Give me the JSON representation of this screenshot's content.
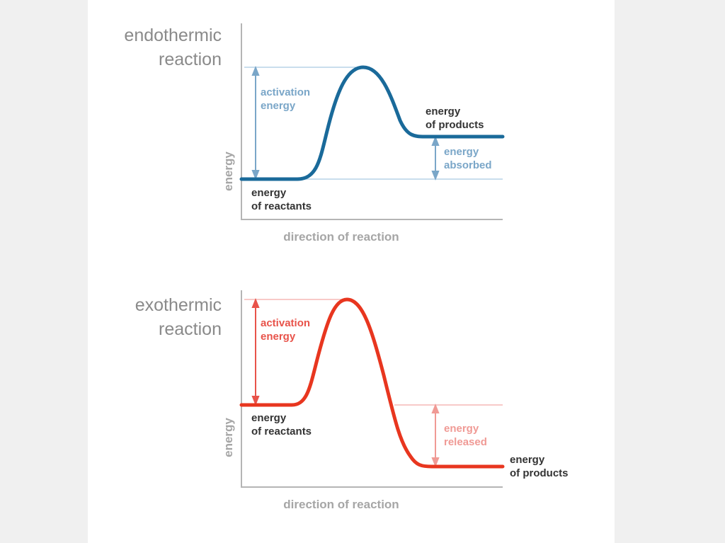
{
  "colors": {
    "endo_curve": "#1a6a9a",
    "endo_label": "#7aa6c8",
    "endo_guide": "#a9c9e2",
    "exo_curve": "#e8361f",
    "exo_label": "#e8534a",
    "exo_released": "#f09a95",
    "exo_guide": "#f3aaa6",
    "axis": "#b5b5b5",
    "dark_text": "#333333"
  },
  "endothermic": {
    "title_line1": "endothermic",
    "title_line2": "reaction",
    "y_axis_label": "energy",
    "x_axis_label": "direction of reaction",
    "activation_line1": "activation",
    "activation_line2": "energy",
    "products_line1": "energy",
    "products_line2": "of products",
    "change_line1": "energy",
    "change_line2": "absorbed",
    "reactants_line1": "energy",
    "reactants_line2": "of reactants"
  },
  "exothermic": {
    "title_line1": "exothermic",
    "title_line2": "reaction",
    "y_axis_label": "energy",
    "x_axis_label": "direction of reaction",
    "activation_line1": "activation",
    "activation_line2": "energy",
    "reactants_line1": "energy",
    "reactants_line2": "of reactants",
    "change_line1": "energy",
    "change_line2": "released",
    "products_line1": "energy",
    "products_line2": "of products"
  }
}
